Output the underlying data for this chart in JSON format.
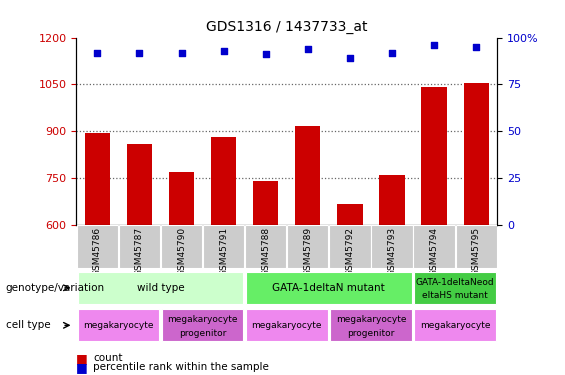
{
  "title": "GDS1316 / 1437733_at",
  "samples": [
    "GSM45786",
    "GSM45787",
    "GSM45790",
    "GSM45791",
    "GSM45788",
    "GSM45789",
    "GSM45792",
    "GSM45793",
    "GSM45794",
    "GSM45795"
  ],
  "bar_values": [
    895,
    860,
    770,
    882,
    742,
    918,
    668,
    760,
    1042,
    1055
  ],
  "percentile_values": [
    92,
    92,
    92,
    93,
    91,
    94,
    89,
    92,
    96,
    95
  ],
  "ylim_left": [
    600,
    1200
  ],
  "ylim_right": [
    0,
    100
  ],
  "yticks_left": [
    600,
    750,
    900,
    1050,
    1200
  ],
  "yticks_right": [
    0,
    25,
    50,
    75,
    100
  ],
  "bar_color": "#cc0000",
  "dot_color": "#0000cc",
  "genotype_groups": [
    {
      "label": "wild type",
      "start": 0,
      "end": 4,
      "color": "#ccffcc"
    },
    {
      "label": "GATA-1deltaN mutant",
      "start": 4,
      "end": 8,
      "color": "#66ee66"
    },
    {
      "label": "GATA-1deltaNeod\neltaHS mutant",
      "start": 8,
      "end": 10,
      "color": "#44cc44"
    }
  ],
  "cell_type_groups": [
    {
      "label": "megakaryocyte",
      "start": 0,
      "end": 2,
      "color": "#ee88ee"
    },
    {
      "label": "megakaryocyte\nprogenitor",
      "start": 2,
      "end": 4,
      "color": "#cc66cc"
    },
    {
      "label": "megakaryocyte",
      "start": 4,
      "end": 6,
      "color": "#ee88ee"
    },
    {
      "label": "megakaryocyte\nprogenitor",
      "start": 6,
      "end": 8,
      "color": "#cc66cc"
    },
    {
      "label": "megakaryocyte",
      "start": 8,
      "end": 10,
      "color": "#ee88ee"
    }
  ],
  "left_label_color": "#cc0000",
  "right_label_color": "#0000cc",
  "grid_color": "#666666",
  "tick_bg_color": "#cccccc",
  "genotype_label_fontsize": 7.5,
  "cell_label_fontsize": 6.5,
  "row_label_fontsize": 7.5
}
